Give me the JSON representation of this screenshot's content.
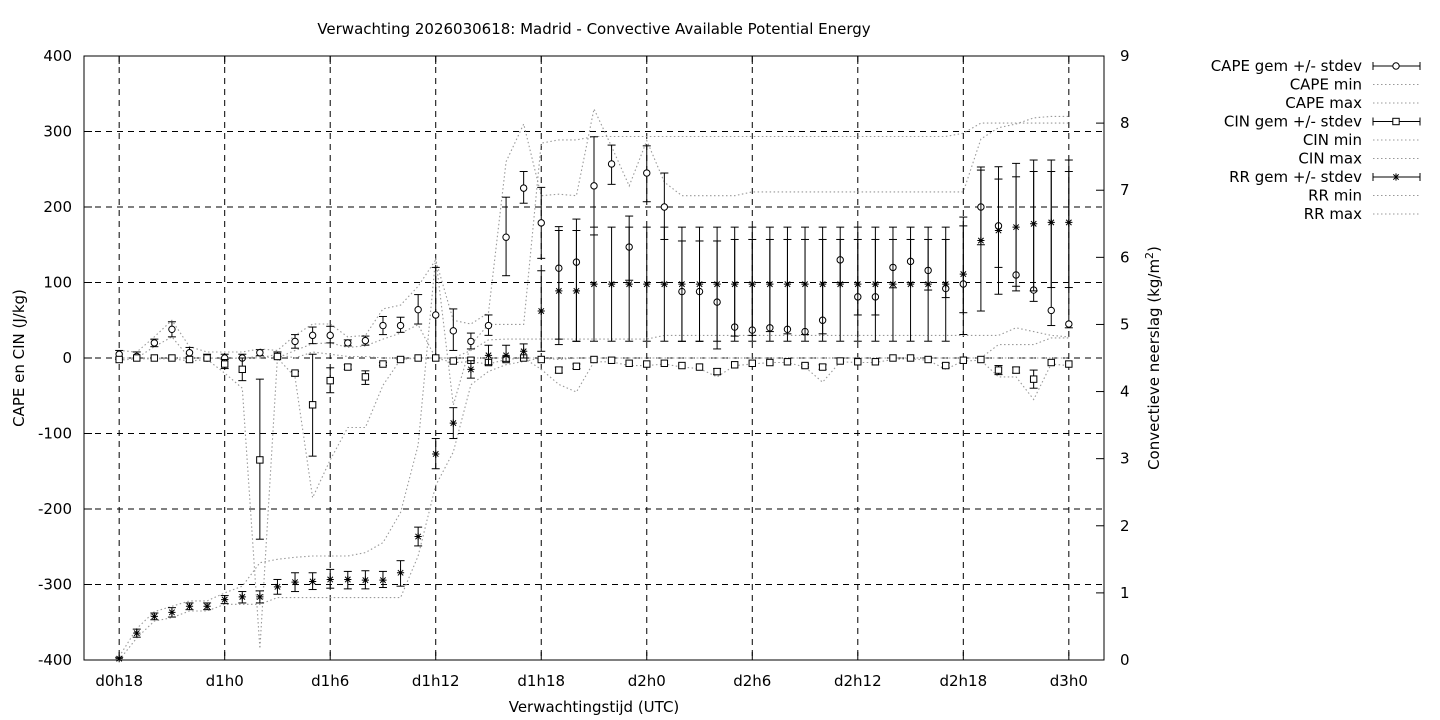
{
  "chart_data": {
    "type": "line",
    "title": "Verwachting 2026030618: Madrid - Convective Available Potential Energy",
    "xlabel": "Verwachtingstijd (UTC)",
    "ylabel": "CAPE en CIN (J/kg)",
    "y2label": "Convectieve neerslag (kg/m",
    "y2label_sup": "2",
    "y2label_end": ")",
    "x_unit": "forecast hours since d0h18",
    "xlim": [
      -2,
      56
    ],
    "ylim": [
      -400,
      400
    ],
    "y2lim": [
      0,
      9
    ],
    "grid": true,
    "legend_position": "outside-right",
    "x_ticks": [
      {
        "x": 0,
        "label": "d0h18"
      },
      {
        "x": 6,
        "label": "d1h0"
      },
      {
        "x": 12,
        "label": "d1h6"
      },
      {
        "x": 18,
        "label": "d1h12"
      },
      {
        "x": 24,
        "label": "d1h18"
      },
      {
        "x": 30,
        "label": "d2h0"
      },
      {
        "x": 36,
        "label": "d2h6"
      },
      {
        "x": 42,
        "label": "d2h12"
      },
      {
        "x": 48,
        "label": "d2h18"
      },
      {
        "x": 54,
        "label": "d3h0"
      }
    ],
    "y_ticks": [
      -400,
      -300,
      -200,
      -100,
      0,
      100,
      200,
      300,
      400
    ],
    "y_tick_labels": [
      "-400",
      "-300",
      "-200",
      "-100",
      "0",
      "100",
      "200",
      "300",
      "400"
    ],
    "y2_ticks": [
      0,
      1,
      2,
      3,
      4,
      5,
      6,
      7,
      8,
      9
    ],
    "y2_tick_labels": [
      "0",
      "1",
      "2",
      "3",
      "4",
      "5",
      "6",
      "7",
      "8",
      "9"
    ],
    "x": [
      0,
      1,
      2,
      3,
      4,
      5,
      6,
      7,
      8,
      9,
      10,
      11,
      12,
      13,
      14,
      15,
      16,
      17,
      18,
      19,
      20,
      21,
      22,
      23,
      24,
      25,
      26,
      27,
      28,
      29,
      30,
      31,
      32,
      33,
      34,
      35,
      36,
      37,
      38,
      39,
      40,
      41,
      42,
      43,
      44,
      45,
      46,
      47,
      48,
      49,
      50,
      51,
      52,
      53,
      54
    ],
    "series": [
      {
        "name": "CAPE gem +/- stdev",
        "axis": "y",
        "marker": "circle",
        "style": "errorbars",
        "mean": [
          5,
          2,
          20,
          38,
          7,
          0,
          0,
          0,
          7,
          2,
          22,
          30,
          30,
          20,
          23,
          43,
          43,
          64,
          57,
          36,
          22,
          43,
          160,
          225,
          179,
          119,
          127,
          228,
          257,
          147,
          245,
          200,
          88,
          88,
          74,
          41,
          37,
          40,
          38,
          35,
          50,
          130,
          81,
          81,
          120,
          128,
          116,
          92,
          98,
          200,
          175,
          110,
          90,
          63,
          45
        ],
        "low": [
          0,
          0,
          15,
          28,
          0,
          0,
          0,
          0,
          3,
          0,
          13,
          19,
          20,
          16,
          17,
          31,
          34,
          45,
          0,
          10,
          12,
          30,
          109,
          205,
          132,
          25,
          22,
          163,
          230,
          103,
          207,
          157,
          22,
          22,
          12,
          29,
          30,
          35,
          32,
          31,
          32,
          100,
          57,
          57,
          93,
          100,
          90,
          80,
          60,
          150,
          120,
          95,
          75,
          43,
          40
        ],
        "high": [
          10,
          8,
          25,
          48,
          14,
          5,
          5,
          5,
          11,
          8,
          31,
          41,
          42,
          24,
          29,
          55,
          54,
          84,
          120,
          65,
          33,
          57,
          213,
          247,
          226,
          174,
          184,
          293,
          282,
          188,
          281,
          245,
          155,
          155,
          155,
          157,
          157,
          157,
          157,
          157,
          157,
          157,
          157,
          157,
          157,
          157,
          157,
          157,
          175,
          253,
          237,
          240,
          247,
          247,
          247
        ]
      },
      {
        "name": "CAPE min",
        "axis": "y",
        "marker": "none",
        "style": "dotted",
        "values": [
          0,
          0,
          15,
          28,
          0,
          0,
          0,
          0,
          2,
          0,
          10,
          19,
          20,
          14,
          16,
          25,
          33,
          44,
          0,
          0,
          10,
          24,
          25,
          25,
          25,
          25,
          25,
          25,
          25,
          25,
          25,
          30,
          30,
          30,
          30,
          30,
          30,
          30,
          30,
          30,
          30,
          30,
          30,
          30,
          30,
          30,
          30,
          30,
          30,
          30,
          30,
          40,
          35,
          30,
          28
        ]
      },
      {
        "name": "CAPE max",
        "axis": "y",
        "marker": "none",
        "style": "dotted",
        "values": [
          10,
          8,
          28,
          50,
          15,
          8,
          8,
          8,
          12,
          10,
          30,
          45,
          45,
          28,
          30,
          65,
          70,
          95,
          130,
          50,
          45,
          60,
          260,
          310,
          215,
          217,
          215,
          330,
          280,
          228,
          288,
          233,
          215,
          215,
          215,
          215,
          220,
          220,
          220,
          220,
          220,
          220,
          220,
          220,
          220,
          220,
          220,
          220,
          220,
          290,
          305,
          310,
          318,
          320,
          320
        ]
      },
      {
        "name": "CIN gem +/- stdev",
        "axis": "y",
        "marker": "square",
        "style": "errorbars",
        "mean": [
          -2,
          0,
          0,
          0,
          -2,
          0,
          -8,
          -15,
          -135,
          2,
          -20,
          -62,
          -30,
          -12,
          -25,
          -8,
          -2,
          0,
          0,
          -4,
          -3,
          -6,
          -2,
          0,
          -2,
          -16,
          -11,
          -2,
          -3,
          -7,
          -8,
          -7,
          -10,
          -12,
          -18,
          -9,
          -7,
          -6,
          -5,
          -10,
          -12,
          -4,
          -5,
          -5,
          0,
          0,
          -2,
          -10,
          -3,
          -2,
          -16,
          -16,
          -28,
          -6,
          -8
        ],
        "low": [
          -2,
          0,
          0,
          0,
          -5,
          0,
          -14,
          -30,
          -240,
          0,
          -24,
          -130,
          -46,
          -15,
          -35,
          -10,
          -2,
          0,
          0,
          -6,
          -3,
          -6,
          -2,
          0,
          -2,
          -20,
          -14,
          -2,
          -3,
          -7,
          -8,
          -7,
          -10,
          -12,
          -22,
          -9,
          -7,
          -6,
          -5,
          -12,
          -15,
          -4,
          -5,
          -5,
          0,
          0,
          -2,
          -13,
          -3,
          -2,
          -22,
          -20,
          -40,
          -6,
          -8
        ],
        "high": [
          0,
          0,
          0,
          0,
          0,
          0,
          -2,
          0,
          -28,
          2,
          -18,
          5,
          -13,
          -9,
          -17,
          -6,
          0,
          0,
          0,
          -2,
          -3,
          -6,
          -2,
          0,
          -2,
          -12,
          -8,
          -2,
          -3,
          -7,
          -8,
          -7,
          -10,
          -12,
          -14,
          -9,
          -7,
          -6,
          -5,
          -8,
          -9,
          -4,
          -5,
          -5,
          0,
          0,
          -2,
          -7,
          -3,
          -2,
          -10,
          -12,
          -16,
          -6,
          -8
        ]
      },
      {
        "name": "CIN min",
        "axis": "y",
        "marker": "none",
        "style": "dotted",
        "values": [
          -3,
          -1,
          -1,
          -1,
          -4,
          -2,
          -20,
          -40,
          -385,
          0,
          -25,
          -185,
          -135,
          -92,
          -92,
          -36,
          -2,
          0,
          0,
          -6,
          -5,
          -8,
          -2,
          0,
          -15,
          -35,
          -45,
          -5,
          -5,
          -10,
          -10,
          -8,
          -12,
          -14,
          -25,
          -10,
          -8,
          -6,
          -6,
          -12,
          -32,
          -5,
          -6,
          -6,
          -2,
          -1,
          -3,
          -15,
          -4,
          -3,
          -25,
          -25,
          -55,
          -8,
          -10
        ]
      },
      {
        "name": "CIN max",
        "axis": "y",
        "marker": "none",
        "style": "dotted",
        "values": [
          0,
          0,
          0,
          0,
          0,
          0,
          -1,
          0,
          0,
          5,
          0,
          8,
          5,
          2,
          2,
          0,
          0,
          0,
          0,
          0,
          0,
          0,
          0,
          0,
          0,
          -2,
          0,
          0,
          0,
          0,
          0,
          0,
          0,
          0,
          0,
          0,
          0,
          0,
          0,
          0,
          0,
          0,
          0,
          0,
          0,
          0,
          0,
          0,
          0,
          0,
          0,
          0,
          0,
          0,
          0
        ]
      },
      {
        "name": "RR gem +/- stdev",
        "axis": "y2",
        "marker": "star",
        "style": "errorbars",
        "mean": [
          0.02,
          0.4,
          0.65,
          0.71,
          0.8,
          0.8,
          0.9,
          0.94,
          0.94,
          1.09,
          1.16,
          1.17,
          1.2,
          1.2,
          1.19,
          1.19,
          1.3,
          1.84,
          3.07,
          3.53,
          4.33,
          4.54,
          4.54,
          4.6,
          5.2,
          5.5,
          5.5,
          5.6,
          5.6,
          5.6,
          5.6,
          5.6,
          5.6,
          5.6,
          5.6,
          5.6,
          5.6,
          5.6,
          5.6,
          5.6,
          5.6,
          5.6,
          5.6,
          5.6,
          5.6,
          5.6,
          5.6,
          5.6,
          5.75,
          6.25,
          6.4,
          6.45,
          6.5,
          6.52,
          6.52
        ],
        "low": [
          0.0,
          0.34,
          0.6,
          0.64,
          0.75,
          0.75,
          0.84,
          0.85,
          0.85,
          0.98,
          1.02,
          1.05,
          1.07,
          1.06,
          1.06,
          1.08,
          1.1,
          1.7,
          2.85,
          3.3,
          4.2,
          4.4,
          4.45,
          4.5,
          4.6,
          4.7,
          4.75,
          4.75,
          4.75,
          4.75,
          4.75,
          4.75,
          4.75,
          4.75,
          4.75,
          4.75,
          4.75,
          4.75,
          4.75,
          4.75,
          4.75,
          4.75,
          4.75,
          4.75,
          4.75,
          4.75,
          4.75,
          4.75,
          4.85,
          5.2,
          5.45,
          5.5,
          5.5,
          5.55,
          5.55
        ],
        "high": [
          0.04,
          0.46,
          0.7,
          0.78,
          0.85,
          0.85,
          0.96,
          1.02,
          1.03,
          1.2,
          1.3,
          1.3,
          1.35,
          1.32,
          1.33,
          1.32,
          1.48,
          1.98,
          3.3,
          3.76,
          4.46,
          4.69,
          4.69,
          4.71,
          5.8,
          6.4,
          6.4,
          6.45,
          6.45,
          6.45,
          6.45,
          6.45,
          6.45,
          6.45,
          6.45,
          6.45,
          6.45,
          6.45,
          6.45,
          6.45,
          6.45,
          6.45,
          6.45,
          6.45,
          6.45,
          6.45,
          6.45,
          6.45,
          6.6,
          7.3,
          7.35,
          7.4,
          7.45,
          7.45,
          7.45
        ]
      },
      {
        "name": "RR min",
        "axis": "y2",
        "marker": "none",
        "style": "dotted",
        "values": [
          0.0,
          0.33,
          0.58,
          0.63,
          0.73,
          0.73,
          0.83,
          0.83,
          0.83,
          0.93,
          0.93,
          0.93,
          0.93,
          0.93,
          0.93,
          0.93,
          0.93,
          1.55,
          2.6,
          3.1,
          4.1,
          4.3,
          4.4,
          4.45,
          4.5,
          4.5,
          4.5,
          4.5,
          4.5,
          4.5,
          4.5,
          4.5,
          4.5,
          4.5,
          4.5,
          4.5,
          4.5,
          4.5,
          4.5,
          4.5,
          4.5,
          4.5,
          4.5,
          4.5,
          4.5,
          4.5,
          4.5,
          4.5,
          4.5,
          4.5,
          4.7,
          4.7,
          4.7,
          4.8,
          4.8
        ]
      },
      {
        "name": "RR max",
        "axis": "y2",
        "marker": "none",
        "style": "dotted",
        "values": [
          0.05,
          0.47,
          0.72,
          0.8,
          0.88,
          0.88,
          1.0,
          1.1,
          1.45,
          1.5,
          1.53,
          1.55,
          1.55,
          1.55,
          1.6,
          1.75,
          2.2,
          3.2,
          6.0,
          3.8,
          4.7,
          5.0,
          5.0,
          5.0,
          7.7,
          7.75,
          7.75,
          7.8,
          7.8,
          7.8,
          7.8,
          7.8,
          7.8,
          7.8,
          7.8,
          7.8,
          7.8,
          7.8,
          7.8,
          7.8,
          7.8,
          7.8,
          7.8,
          7.8,
          7.8,
          7.8,
          7.8,
          7.8,
          7.85,
          8.0,
          8.0,
          8.0,
          8.0,
          8.0,
          8.0
        ]
      }
    ]
  }
}
